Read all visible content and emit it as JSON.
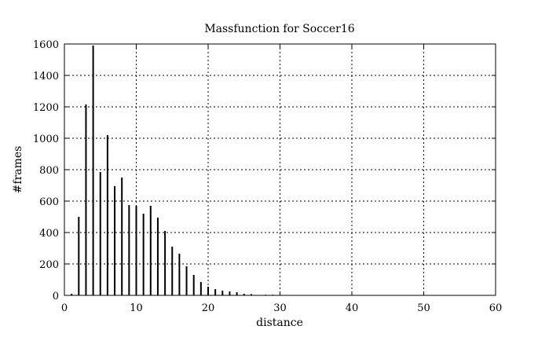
{
  "chart_data": {
    "type": "bar",
    "title": "Massfunction for Soccer16",
    "xlabel": "distance",
    "ylabel": "#frames",
    "xlim": [
      0,
      60
    ],
    "ylim": [
      0,
      1600
    ],
    "x_ticks": [
      0,
      10,
      20,
      30,
      40,
      50,
      60
    ],
    "y_ticks": [
      0,
      200,
      400,
      600,
      800,
      1000,
      1200,
      1400,
      1600
    ],
    "grid": true,
    "grid_style": "dotted",
    "bar_color": "#000000",
    "x": [
      1,
      2,
      3,
      4,
      5,
      6,
      7,
      8,
      9,
      10,
      11,
      12,
      13,
      14,
      15,
      16,
      17,
      18,
      19,
      20,
      21,
      22,
      23,
      24,
      25,
      26,
      27,
      28,
      29
    ],
    "values": [
      10,
      500,
      1215,
      1590,
      785,
      1020,
      695,
      750,
      575,
      570,
      520,
      570,
      495,
      410,
      310,
      265,
      185,
      130,
      85,
      55,
      40,
      30,
      25,
      20,
      10,
      8,
      2,
      4,
      4
    ]
  }
}
